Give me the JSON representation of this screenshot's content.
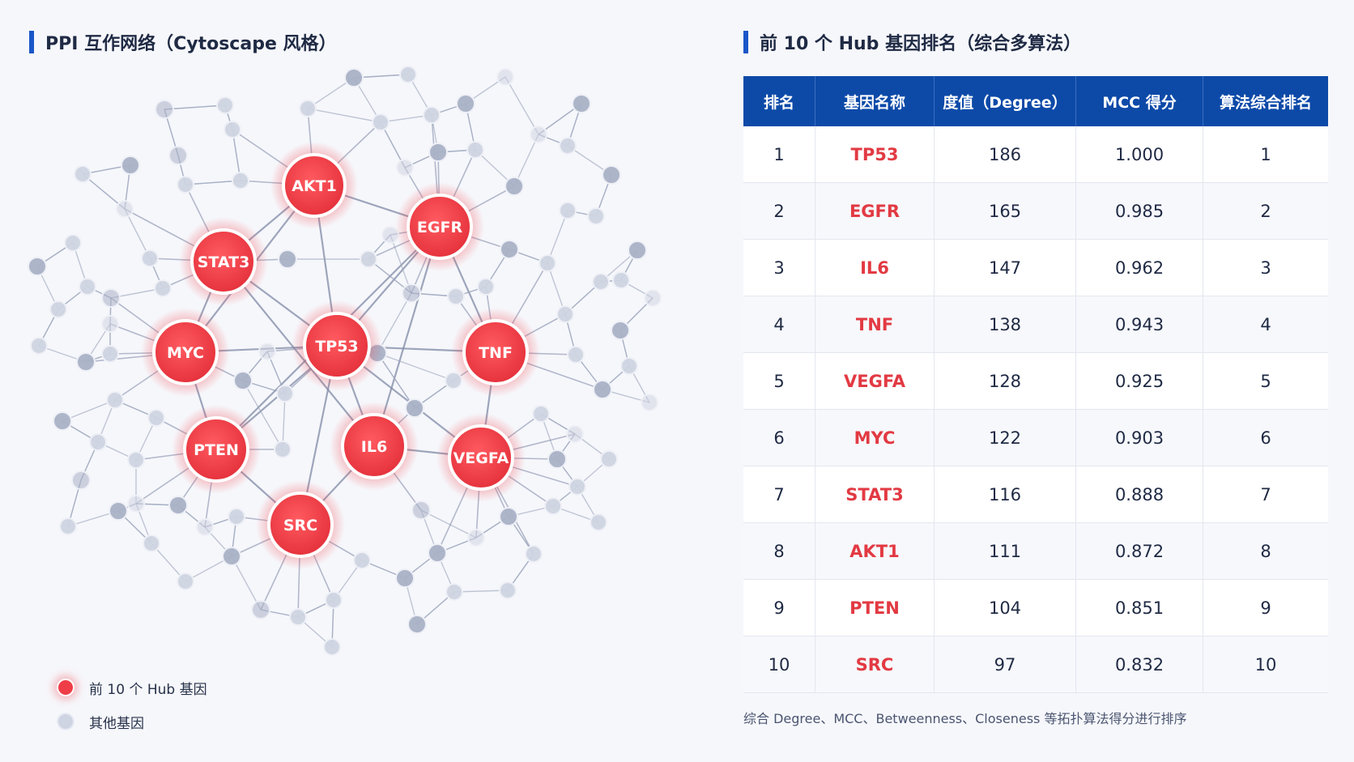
{
  "network_title": "PPI 互作网络（Cytoscape 风格）",
  "table_title": "前 10 个 Hub 基因排名（综合多算法）",
  "colors": {
    "hub": "#ef3e47",
    "other": "#cfd4e2",
    "header": "#0d4aa8",
    "gene_text": "#e23a43"
  },
  "hub_genes": [
    "TP53",
    "EGFR",
    "AKT1",
    "STAT3",
    "MYC",
    "TNF",
    "PTEN",
    "IL6",
    "VEGFA",
    "SRC"
  ],
  "legend": {
    "hub_label": "前 10 个 Hub 基因",
    "other_label": "其他基因"
  },
  "table": {
    "headers": [
      "排名",
      "基因名称",
      "度值（Degree）",
      "MCC 得分",
      "算法综合排名"
    ],
    "rows": [
      [
        "1",
        "TP53",
        "186",
        "1.000",
        "1"
      ],
      [
        "2",
        "EGFR",
        "165",
        "0.985",
        "2"
      ],
      [
        "3",
        "IL6",
        "147",
        "0.962",
        "3"
      ],
      [
        "4",
        "TNF",
        "138",
        "0.943",
        "4"
      ],
      [
        "5",
        "VEGFA",
        "128",
        "0.925",
        "5"
      ],
      [
        "6",
        "MYC",
        "122",
        "0.903",
        "6"
      ],
      [
        "7",
        "STAT3",
        "116",
        "0.888",
        "7"
      ],
      [
        "8",
        "AKT1",
        "111",
        "0.872",
        "8"
      ],
      [
        "9",
        "PTEN",
        "104",
        "0.851",
        "9"
      ],
      [
        "10",
        "SRC",
        "97",
        "0.832",
        "10"
      ]
    ]
  },
  "footnote": "综合 Degree、MCC、Betweenness、Closeness 等拓扑算法得分进行排序"
}
